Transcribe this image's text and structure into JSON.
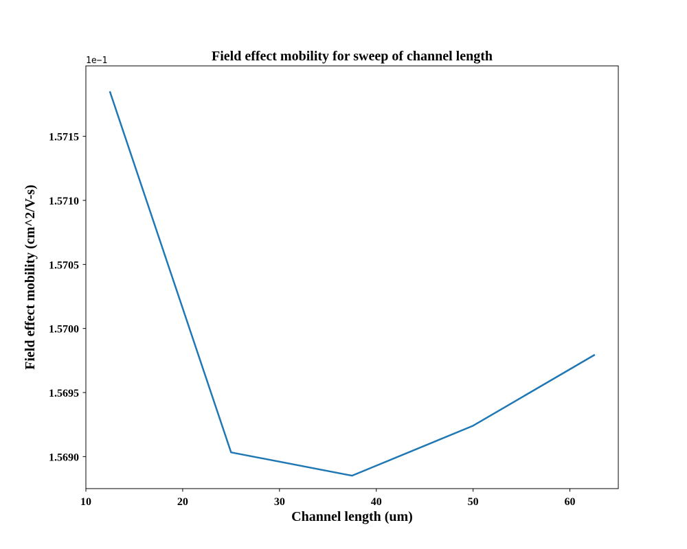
{
  "chart_data": {
    "type": "line",
    "title": "Field effect mobility for sweep of channel length",
    "xlabel": "Channel length (um)",
    "ylabel": "Field effect mobility (cm^2/V-s)",
    "offset_text": "1e−1",
    "xlim": [
      10,
      65
    ],
    "ylim": [
      1.56875,
      1.57205
    ],
    "x_ticks": [
      10,
      20,
      30,
      40,
      50,
      60
    ],
    "x_tick_labels": [
      "10",
      "20",
      "30",
      "40",
      "50",
      "60"
    ],
    "y_ticks": [
      1.569,
      1.5695,
      1.57,
      1.5705,
      1.571,
      1.5715
    ],
    "y_tick_labels": [
      "1.5690",
      "1.5695",
      "1.5700",
      "1.5705",
      "1.5710",
      "1.5715"
    ],
    "grid": false,
    "series": [
      {
        "color": "#1f77b4",
        "x": [
          12.5,
          25,
          37.5,
          50,
          62.5
        ],
        "y": [
          1.571845,
          1.569033,
          1.568851,
          1.569241,
          1.569792
        ]
      }
    ]
  }
}
